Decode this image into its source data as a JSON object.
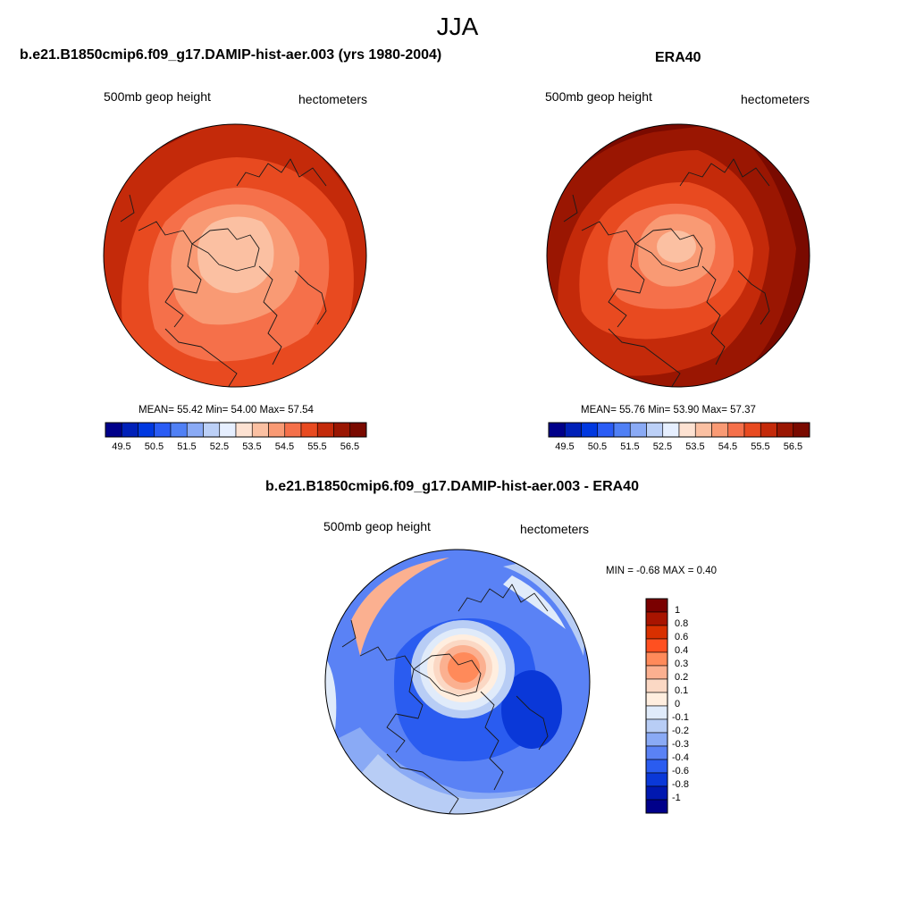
{
  "figure": {
    "title": "JJA"
  },
  "panels": {
    "model": {
      "title": "b.e21.B1850cmip6.f09_g17.DAMIP-hist-aer.003 (yrs 1980-2004)",
      "left_label": "500mb geop height",
      "right_label": "hectometers",
      "stats": "MEAN=  55.42  Min=  54.00  Max=  57.54"
    },
    "obs": {
      "title": "ERA40",
      "left_label": "500mb geop height",
      "right_label": "hectometers",
      "stats": "MEAN=  55.76  Min=  53.90  Max=  57.37"
    },
    "diff": {
      "title": "b.e21.B1850cmip6.f09_g17.DAMIP-hist-aer.003 - ERA40",
      "left_label": "500mb geop height",
      "right_label": "hectometers",
      "stats": "MIN =  -0.68 MAX =   0.40"
    }
  },
  "colorbars": {
    "field": {
      "labels": [
        "49.5",
        "50.5",
        "51.5",
        "52.5",
        "53.5",
        "54.5",
        "55.5",
        "56.5"
      ],
      "colors": [
        "#00008a",
        "#0020b8",
        "#0038e0",
        "#2a5cf5",
        "#5080f5",
        "#8aaaf5",
        "#bcd0f7",
        "#e6efff",
        "#fde2d2",
        "#fbc0a2",
        "#f99a74",
        "#f5704a",
        "#e84a20",
        "#c42a0a",
        "#9a1602",
        "#7a0a00"
      ]
    },
    "diff": {
      "labels": [
        "1",
        "0.8",
        "0.6",
        "0.4",
        "0.3",
        "0.2",
        "0.1",
        "0",
        "-0.1",
        "-0.2",
        "-0.3",
        "-0.4",
        "-0.6",
        "-0.8",
        "-1"
      ],
      "colors": [
        "#7a0000",
        "#a81400",
        "#d83000",
        "#ff5020",
        "#ff8a5a",
        "#fbb090",
        "#fbd8c4",
        "#ffeedf",
        "#e0ebfa",
        "#b8cdf5",
        "#8aaaf5",
        "#5a82f5",
        "#2a5cf0",
        "#0a38d8",
        "#0018b0",
        "#00008a"
      ]
    }
  },
  "chart_data": [
    {
      "type": "heatmap",
      "title": "b.e21.B1850cmip6.f09_g17.DAMIP-hist-aer.003 (yrs 1980-2004)",
      "variable": "500mb geop height",
      "units": "hectometers",
      "projection": "north polar stereographic",
      "mean": 55.42,
      "min": 54.0,
      "max": 57.54,
      "levels": [
        49.5,
        50.5,
        51.5,
        52.5,
        53.5,
        54.5,
        55.5,
        56.5
      ]
    },
    {
      "type": "heatmap",
      "title": "ERA40",
      "variable": "500mb geop height",
      "units": "hectometers",
      "projection": "north polar stereographic",
      "mean": 55.76,
      "min": 53.9,
      "max": 57.37,
      "levels": [
        49.5,
        50.5,
        51.5,
        52.5,
        53.5,
        54.5,
        55.5,
        56.5
      ]
    },
    {
      "type": "heatmap",
      "title": "b.e21.B1850cmip6.f09_g17.DAMIP-hist-aer.003 - ERA40",
      "variable": "500mb geop height",
      "units": "hectometers",
      "projection": "north polar stereographic",
      "min": -0.68,
      "max": 0.4,
      "levels": [
        -1,
        -0.8,
        -0.6,
        -0.4,
        -0.3,
        -0.2,
        -0.1,
        0,
        0.1,
        0.2,
        0.3,
        0.4,
        0.6,
        0.8,
        1
      ]
    }
  ]
}
